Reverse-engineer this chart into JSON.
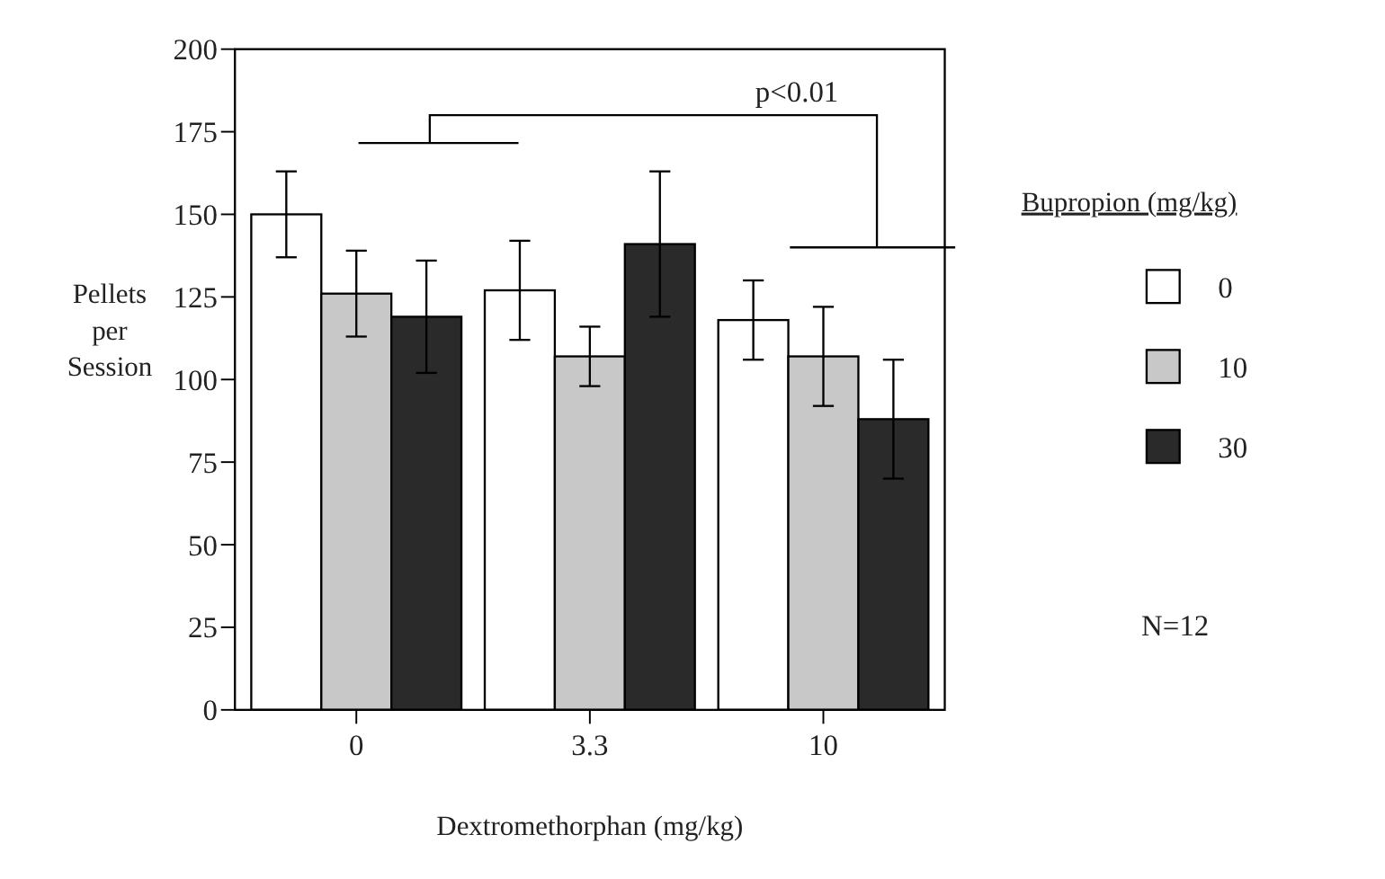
{
  "chart_data": {
    "type": "bar",
    "xlabel": "Dextromethorphan (mg/kg)",
    "ylabel": "Pellets per Session",
    "legend_title": "Bupropion (mg/kg)",
    "categories": [
      "0",
      "3.3",
      "10"
    ],
    "series": [
      {
        "name": "0",
        "color": "#ffffff",
        "values": [
          150,
          127,
          118
        ],
        "errors": [
          13,
          15,
          12
        ]
      },
      {
        "name": "10",
        "color": "#c8c8c8",
        "values": [
          126,
          107,
          107
        ],
        "errors": [
          13,
          9,
          15
        ]
      },
      {
        "name": "30",
        "color": "#2a2a2a",
        "values": [
          119,
          141,
          88
        ],
        "errors": [
          17,
          22,
          18
        ]
      }
    ],
    "ylim": [
      0,
      200
    ],
    "yticks": [
      0,
      25,
      50,
      75,
      100,
      125,
      150,
      175,
      200
    ],
    "legend": "right",
    "annotations": [
      "p<0.01",
      "N=12"
    ]
  }
}
